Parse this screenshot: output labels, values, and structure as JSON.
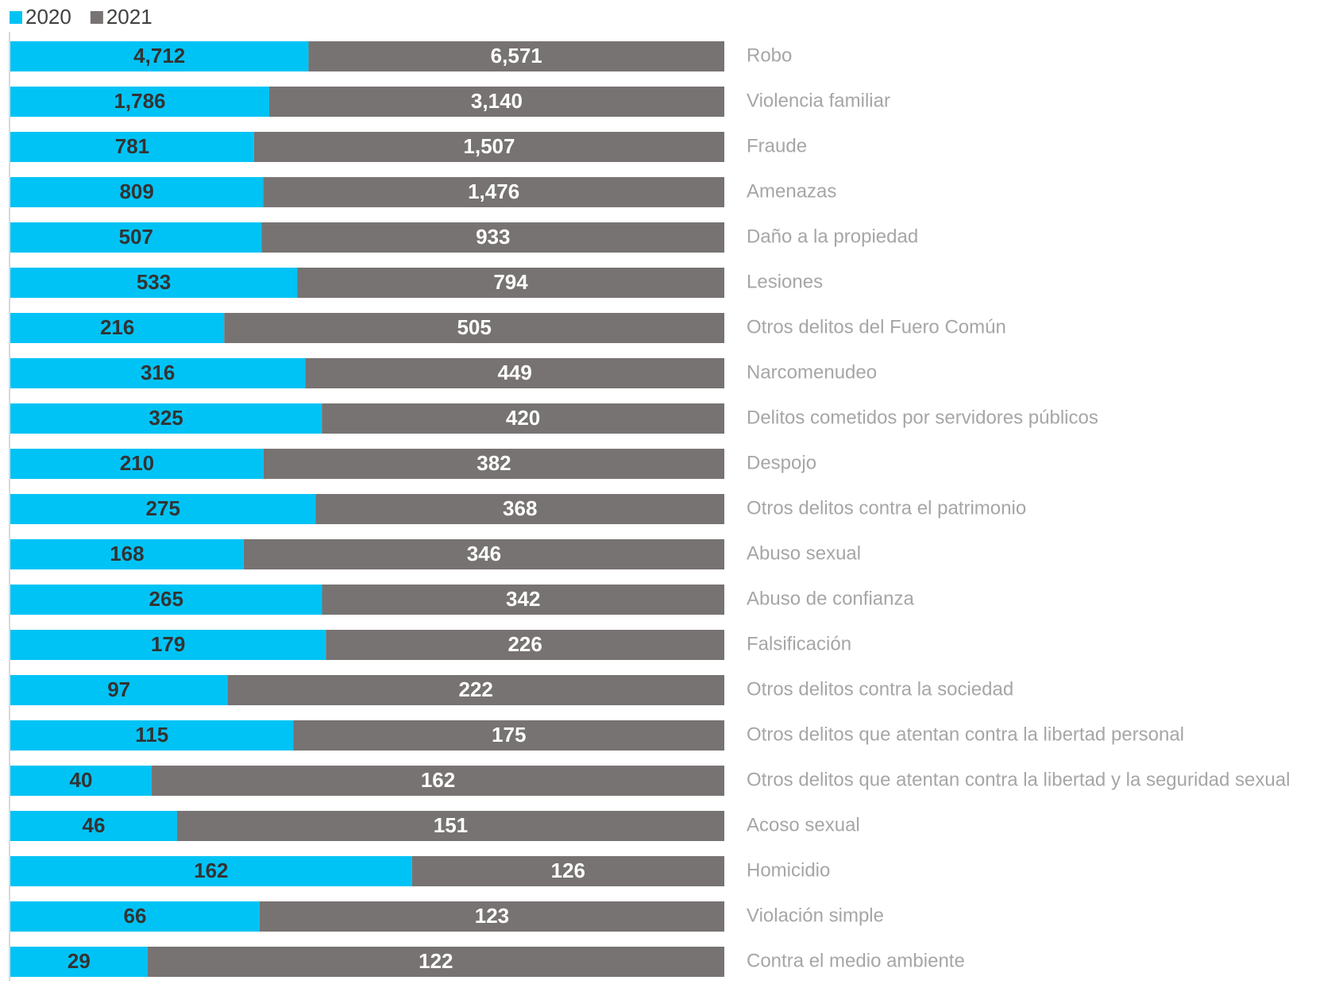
{
  "chart_data": {
    "type": "bar",
    "orientation": "horizontal",
    "stacking": "percent",
    "categories": [
      "Robo",
      "Violencia familiar",
      "Fraude",
      "Amenazas",
      "Daño a la propiedad",
      "Lesiones",
      "Otros delitos del Fuero Común",
      "Narcomenudeo",
      "Delitos cometidos por servidores públicos",
      "Despojo",
      "Otros delitos contra el patrimonio",
      "Abuso sexual",
      "Abuso de confianza",
      "Falsificación",
      "Otros delitos contra la sociedad",
      "Otros delitos que atentan contra la libertad personal",
      "Otros delitos que atentan contra la libertad y la seguridad sexual",
      "Acoso sexual",
      "Homicidio",
      "Violación simple",
      "Contra el medio ambiente"
    ],
    "series": [
      {
        "name": "2020",
        "color": "#00c3f5",
        "values": [
          4712,
          1786,
          781,
          809,
          507,
          533,
          216,
          316,
          325,
          210,
          275,
          168,
          265,
          179,
          97,
          115,
          40,
          46,
          162,
          66,
          29
        ],
        "value_labels": [
          "4,712",
          "1,786",
          "781",
          "809",
          "507",
          "533",
          "216",
          "316",
          "325",
          "210",
          "275",
          "168",
          "265",
          "179",
          "97",
          "115",
          "40",
          "46",
          "162",
          "66",
          "29"
        ]
      },
      {
        "name": "2021",
        "color": "#777372",
        "values": [
          6571,
          3140,
          1507,
          1476,
          933,
          794,
          505,
          449,
          420,
          382,
          368,
          346,
          342,
          226,
          222,
          175,
          162,
          151,
          126,
          123,
          122
        ],
        "value_labels": [
          "6,571",
          "3,140",
          "1,507",
          "1,476",
          "933",
          "794",
          "505",
          "449",
          "420",
          "382",
          "368",
          "346",
          "342",
          "226",
          "222",
          "175",
          "162",
          "151",
          "126",
          "123",
          "122"
        ]
      }
    ],
    "legend": "top-left"
  }
}
